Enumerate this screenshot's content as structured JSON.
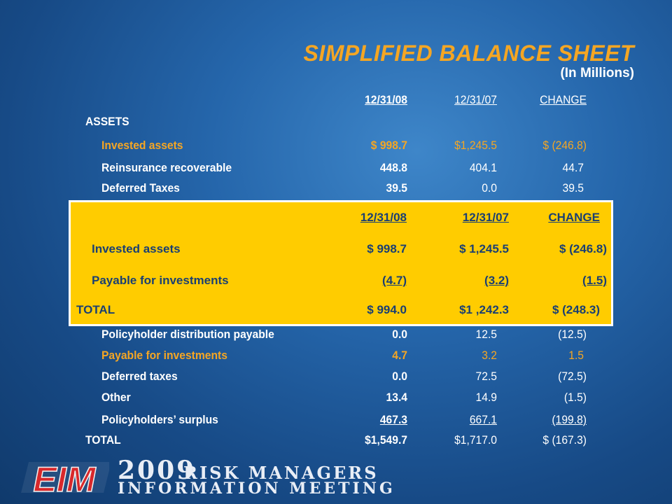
{
  "slide": {
    "title": "SIMPLIFIED BALANCE SHEET",
    "subtitle": "(In Millions)"
  },
  "headers": {
    "col_08": "12/31/08",
    "col_07": "12/31/07",
    "col_change": "CHANGE"
  },
  "assets_label": "ASSETS",
  "rows": [
    {
      "label": "Invested assets",
      "v08": "$ 998.7",
      "v07": "$1,245.5",
      "change": "$    (246.8)"
    },
    {
      "label": "Reinsurance recoverable",
      "v08": "448.8",
      "v07": "404.1",
      "change": "44.7"
    },
    {
      "label": "Deferred Taxes",
      "v08": "39.5",
      "v07": "0.0",
      "change": "39.5"
    },
    {
      "label": "Policyholder distribution payable",
      "v08": "0.0",
      "v07": "12.5",
      "change": "(12.5)"
    },
    {
      "label": "Payable for investments",
      "v08": "4.7",
      "v07": "3.2",
      "change": "1.5"
    },
    {
      "label": "Deferred taxes",
      "v08": "0.0",
      "v07": "72.5",
      "change": "(72.5)"
    },
    {
      "label": "Other",
      "v08": "13.4",
      "v07": "14.9",
      "change": "(1.5)"
    },
    {
      "label": "Policyholders’ surplus",
      "v08": "467.3",
      "v07": "667.1",
      "change": "(199.8)"
    }
  ],
  "total": {
    "label": "TOTAL",
    "v08": "$1,549.7",
    "v07": "$1,717.0",
    "change": "$  (167.3)"
  },
  "popup": {
    "headers": {
      "col_08": "12/31/08",
      "col_07": "12/31/07",
      "col_change": "CHANGE"
    },
    "rows": [
      {
        "label": "Invested assets",
        "v08": "$  998.7",
        "v07": "$ 1,245.5",
        "change": "$  (246.8)"
      },
      {
        "label": "Payable for investments",
        "v08": "(4.7)",
        "v07": "(3.2)",
        "change": "(1.5)"
      }
    ],
    "total": {
      "label": "TOTAL",
      "v08": "$  994.0",
      "v07": "$1 ,242.3",
      "change": "$  (248.3)"
    }
  },
  "footer": {
    "logo_text": "EIM",
    "year": "2009",
    "line1": "RISK MANAGERS",
    "line2": "INFORMATION MEETING"
  },
  "colors": {
    "accent": "#f5a623",
    "popup_bg": "#ffcc00",
    "popup_text": "#1a3f73",
    "logo_red": "#d8282b"
  }
}
